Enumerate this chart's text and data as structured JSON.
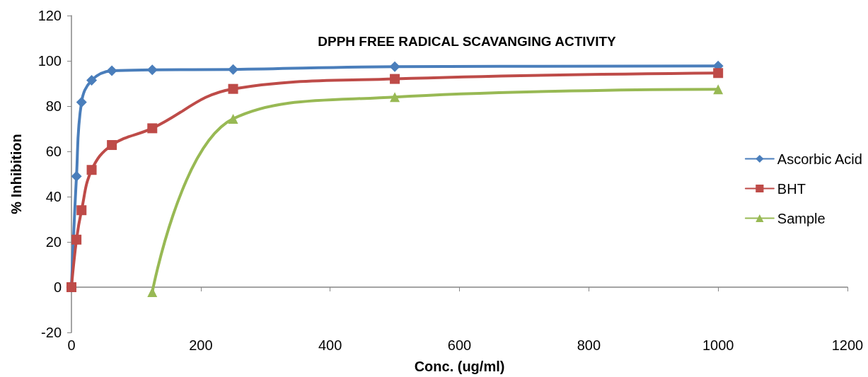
{
  "chart_data": {
    "type": "line",
    "title": "DPPH FREE RADICAL SCAVANGING ACTIVITY",
    "xlabel": "Conc. (ug/ml)",
    "ylabel": "% Inhibition",
    "xlim": [
      0,
      1200
    ],
    "xticks": [
      0,
      200,
      400,
      600,
      800,
      1000,
      1200
    ],
    "ylim": [
      -20,
      120
    ],
    "yticks": [
      -20,
      0,
      20,
      40,
      60,
      80,
      100,
      120
    ],
    "legend": "right",
    "line_style": "solid",
    "series": [
      {
        "name": "Ascorbic Acid",
        "color": "#4a7ebb",
        "marker": "diamond",
        "x": [
          0,
          7.8,
          15.6,
          31.25,
          62.5,
          125,
          250,
          500,
          1000
        ],
        "values": [
          0,
          49,
          81.7,
          91.4,
          95.6,
          96,
          96.2,
          97.4,
          97.7
        ]
      },
      {
        "name": "BHT",
        "color": "#be4b48",
        "marker": "square",
        "x": [
          0,
          7.8,
          15.6,
          31.25,
          62.5,
          125,
          250,
          500,
          1000
        ],
        "values": [
          0,
          21,
          34,
          51.8,
          62.8,
          70.2,
          87.6,
          92,
          94.6
        ]
      },
      {
        "name": "Sample",
        "color": "#98b954",
        "marker": "triangle",
        "x": [
          125,
          250,
          500,
          1000
        ],
        "values": [
          -2.2,
          74.4,
          84,
          87.4
        ]
      }
    ]
  }
}
